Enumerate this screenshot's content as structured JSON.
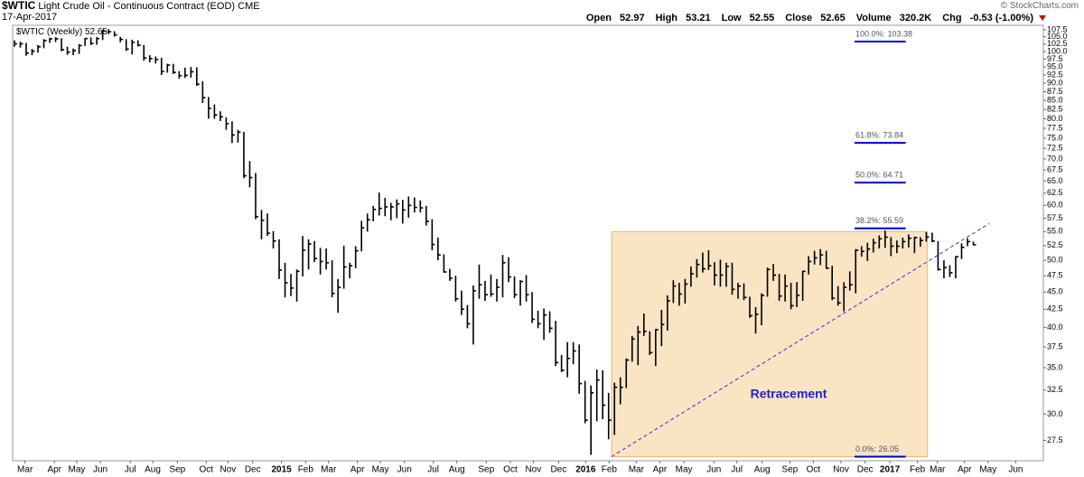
{
  "header": {
    "symbol": "$WTIC",
    "name": "Light Crude Oil - Continuous Contract (EOD)",
    "exchange": "CME",
    "date": "17-Apr-2017",
    "watermark": "© StockCharts.com",
    "quote": [
      {
        "label": "Open",
        "value": 52.97
      },
      {
        "label": "High",
        "value": 53.21
      },
      {
        "label": "Low",
        "value": 52.55
      },
      {
        "label": "Close",
        "value": 52.65
      },
      {
        "label": "Volume",
        "value": "320.2K"
      },
      {
        "label": "Chg",
        "value": "-0.53 (-1.00%)"
      }
    ]
  },
  "chart_data": {
    "type": "ohlc",
    "log_scale": true,
    "legend": {
      "label": "$WTIC (Weekly)",
      "value": 52.65
    },
    "ylim": [
      25.7,
      109.1
    ],
    "xlim": [
      -0.3,
      174.9
    ],
    "yticks": [
      27.5,
      {
        "value": 30,
        "label": "30.0"
      },
      32.5,
      {
        "value": 35,
        "label": "35.0"
      },
      37.5,
      {
        "value": 40,
        "label": "40.0"
      },
      42.5,
      {
        "value": 45,
        "label": "45.0"
      },
      47.5,
      {
        "value": 50,
        "label": "50.0"
      },
      52.5,
      {
        "value": 55,
        "label": "55.0"
      },
      57.5,
      {
        "value": 60,
        "label": "60.0"
      },
      62.5,
      {
        "value": 65,
        "label": "65.0"
      },
      67.5,
      {
        "value": 70,
        "label": "70.0"
      },
      72.5,
      {
        "value": 75,
        "label": "75.0"
      },
      77.5,
      {
        "value": 80,
        "label": "80.0"
      },
      82.5,
      {
        "value": 85,
        "label": "85.0"
      },
      87.5,
      {
        "value": 90,
        "label": "90.0"
      },
      92.5,
      {
        "value": 95,
        "label": "95.0"
      },
      97.5,
      {
        "value": 100,
        "label": "100.0"
      },
      102.5,
      {
        "value": 105,
        "label": "105.0"
      },
      107.5
    ],
    "xticks": [
      {
        "value": 1.8,
        "label": "Mar"
      },
      {
        "value": 6.8,
        "label": "Apr"
      },
      {
        "value": 10.6,
        "label": "May"
      },
      {
        "value": 14.6,
        "label": "Jun"
      },
      {
        "value": 19.7,
        "label": "Jul"
      },
      {
        "value": 23.5,
        "label": "Aug"
      },
      {
        "value": 27.7,
        "label": "Sep"
      },
      {
        "value": 32.6,
        "label": "Oct"
      },
      {
        "value": 36.3,
        "label": "Nov"
      },
      {
        "value": 40.5,
        "label": "Dec"
      },
      {
        "value": 45.4,
        "label": "2015"
      },
      {
        "value": 49.5,
        "label": "Feb"
      },
      {
        "value": 53.4,
        "label": "Mar"
      },
      {
        "value": 58.3,
        "label": "Apr"
      },
      {
        "value": 62.2,
        "label": "May"
      },
      {
        "value": 66.3,
        "label": "Jun"
      },
      {
        "value": 71.2,
        "label": "Jul"
      },
      {
        "value": 75.2,
        "label": "Aug"
      },
      {
        "value": 80.2,
        "label": "Sep"
      },
      {
        "value": 84.3,
        "label": "Oct"
      },
      {
        "value": 88.2,
        "label": "Nov"
      },
      {
        "value": 92.5,
        "label": "Dec"
      },
      {
        "value": 97.1,
        "label": "2016"
      },
      {
        "value": 101.1,
        "label": "Feb"
      },
      {
        "value": 105.7,
        "label": "Mar"
      },
      {
        "value": 109.7,
        "label": "Apr"
      },
      {
        "value": 113.8,
        "label": "May"
      },
      {
        "value": 118.9,
        "label": "Jun"
      },
      {
        "value": 122.8,
        "label": "Jul"
      },
      {
        "value": 127.1,
        "label": "Aug"
      },
      {
        "value": 131.8,
        "label": "Sep"
      },
      {
        "value": 135.8,
        "label": "Oct"
      },
      {
        "value": 140.5,
        "label": "Nov"
      },
      {
        "value": 144.6,
        "label": "Dec"
      },
      {
        "value": 148.8,
        "label": "2017"
      },
      {
        "value": 153.5,
        "label": "Feb"
      },
      {
        "value": 156.9,
        "label": "Mar"
      },
      {
        "value": 161.5,
        "label": "Apr"
      },
      {
        "value": 165.5,
        "label": "May"
      },
      {
        "value": 170.2,
        "label": "Jun"
      }
    ],
    "series": [
      {
        "name": "$WTIC (Weekly)",
        "color": "#000000",
        "bars": [
          [
            103.8,
            101.6,
            102.6
          ],
          [
            103.3,
            101.3,
            102.6
          ],
          [
            102.9,
            98.6,
            99.5
          ],
          [
            100.9,
            98.8,
            100.1
          ],
          [
            102.2,
            99.6,
            101.6
          ],
          [
            104.2,
            101.1,
            103.7
          ],
          [
            104.7,
            102.9,
            104.3
          ],
          [
            104.9,
            103.2,
            104.3
          ],
          [
            104.5,
            100.1,
            100.6
          ],
          [
            101.6,
            98.9,
            99.8
          ],
          [
            101.0,
            98.8,
            100.3
          ],
          [
            102.5,
            99.2,
            102.0
          ],
          [
            104.6,
            101.9,
            104.4
          ],
          [
            104.8,
            102.2,
            102.7
          ],
          [
            104.9,
            102.3,
            104.4
          ],
          [
            107.5,
            103.9,
            107.0
          ],
          [
            107.7,
            105.9,
            106.8
          ],
          [
            107.0,
            105.1,
            105.7
          ],
          [
            105.0,
            103.1,
            104.1
          ],
          [
            104.2,
            100.2,
            100.8
          ],
          [
            104.0,
            99.0,
            103.1
          ],
          [
            103.8,
            101.7,
            102.1
          ],
          [
            102.2,
            97.0,
            97.9
          ],
          [
            98.8,
            96.5,
            97.7
          ],
          [
            98.4,
            96.1,
            97.4
          ],
          [
            97.9,
            92.5,
            93.6
          ],
          [
            96.0,
            93.2,
            95.6
          ],
          [
            96.0,
            92.8,
            93.3
          ],
          [
            93.7,
            91.4,
            92.3
          ],
          [
            94.8,
            91.6,
            92.4
          ],
          [
            95.0,
            91.7,
            93.5
          ],
          [
            94.9,
            89.2,
            89.7
          ],
          [
            90.6,
            84.3,
            85.8
          ],
          [
            86.0,
            80.0,
            82.8
          ],
          [
            83.9,
            80.0,
            81.0
          ],
          [
            82.0,
            79.4,
            80.5
          ],
          [
            80.4,
            77.1,
            78.7
          ],
          [
            79.3,
            73.8,
            75.8
          ],
          [
            77.1,
            73.9,
            76.5
          ],
          [
            76.6,
            65.7,
            66.2
          ],
          [
            69.5,
            63.7,
            65.8
          ],
          [
            66.8,
            57.3,
            57.8
          ],
          [
            59.1,
            53.6,
            57.1
          ],
          [
            58.4,
            54.2,
            54.7
          ],
          [
            55.1,
            52.0,
            53.3
          ],
          [
            53.6,
            47.0,
            48.4
          ],
          [
            49.6,
            44.2,
            46.4
          ],
          [
            47.8,
            44.4,
            45.6
          ],
          [
            48.5,
            43.6,
            48.2
          ],
          [
            54.2,
            47.4,
            51.7
          ],
          [
            53.6,
            48.5,
            52.8
          ],
          [
            53.3,
            49.7,
            50.3
          ],
          [
            52.1,
            47.7,
            49.8
          ],
          [
            52.0,
            48.5,
            49.6
          ],
          [
            50.0,
            44.2,
            44.8
          ],
          [
            47.0,
            42.0,
            45.7
          ],
          [
            52.5,
            45.5,
            48.9
          ],
          [
            49.6,
            47.1,
            49.1
          ],
          [
            52.4,
            48.7,
            51.6
          ],
          [
            57.0,
            51.5,
            55.7
          ],
          [
            58.4,
            55.0,
            57.2
          ],
          [
            59.9,
            56.9,
            59.2
          ],
          [
            62.6,
            58.0,
            59.4
          ],
          [
            61.5,
            57.9,
            59.7
          ],
          [
            60.5,
            57.1,
            59.7
          ],
          [
            61.2,
            57.5,
            60.3
          ],
          [
            61.1,
            56.5,
            59.1
          ],
          [
            61.8,
            57.6,
            60.0
          ],
          [
            61.6,
            58.6,
            59.6
          ],
          [
            61.0,
            58.6,
            59.5
          ],
          [
            59.9,
            56.1,
            56.9
          ],
          [
            57.3,
            51.7,
            52.7
          ],
          [
            53.9,
            50.0,
            50.9
          ],
          [
            51.0,
            48.0,
            48.1
          ],
          [
            48.6,
            46.7,
            47.1
          ],
          [
            47.5,
            43.6,
            44.0
          ],
          [
            45.2,
            41.7,
            42.5
          ],
          [
            43.1,
            39.9,
            40.5
          ],
          [
            46.0,
            37.8,
            45.2
          ],
          [
            49.3,
            44.0,
            46.1
          ],
          [
            46.7,
            43.7,
            44.6
          ],
          [
            47.7,
            44.3,
            44.7
          ],
          [
            47.0,
            43.6,
            45.7
          ],
          [
            50.9,
            44.2,
            49.6
          ],
          [
            50.5,
            46.5,
            47.3
          ],
          [
            47.4,
            44.1,
            44.6
          ],
          [
            46.8,
            43.0,
            46.6
          ],
          [
            47.6,
            43.6,
            44.6
          ],
          [
            45.0,
            40.6,
            41.1
          ],
          [
            42.3,
            39.9,
            40.5
          ],
          [
            42.6,
            38.4,
            41.7
          ],
          [
            42.2,
            39.3,
            39.9
          ],
          [
            40.9,
            35.2,
            35.6
          ],
          [
            36.5,
            34.5,
            34.7
          ],
          [
            38.1,
            33.9,
            36.1
          ],
          [
            38.1,
            35.4,
            37.0
          ],
          [
            37.8,
            32.1,
            33.2
          ],
          [
            33.5,
            29.1,
            29.4
          ],
          [
            33.0,
            26.2,
            32.2
          ],
          [
            34.8,
            29.3,
            33.6
          ],
          [
            34.7,
            29.5,
            30.9
          ],
          [
            32.2,
            27.6,
            29.4
          ],
          [
            33.3,
            28.0,
            32.8
          ],
          [
            33.9,
            31.0,
            32.8
          ],
          [
            36.1,
            32.7,
            35.9
          ],
          [
            38.9,
            35.7,
            38.5
          ],
          [
            40.2,
            35.3,
            39.4
          ],
          [
            41.9,
            38.9,
            39.5
          ],
          [
            39.5,
            36.5,
            36.8
          ],
          [
            39.8,
            35.2,
            39.7
          ],
          [
            42.4,
            37.6,
            40.4
          ],
          [
            44.5,
            39.6,
            43.7
          ],
          [
            46.8,
            43.4,
            45.9
          ],
          [
            46.4,
            43.0,
            44.7
          ],
          [
            47.0,
            43.3,
            46.2
          ],
          [
            49.0,
            45.8,
            47.8
          ],
          [
            50.2,
            47.2,
            49.3
          ],
          [
            51.3,
            48.0,
            48.6
          ],
          [
            51.7,
            48.4,
            49.1
          ],
          [
            49.7,
            46.0,
            47.6
          ],
          [
            50.1,
            45.8,
            47.6
          ],
          [
            49.6,
            45.8,
            48.99
          ],
          [
            49.6,
            44.6,
            45.4
          ],
          [
            46.4,
            44.0,
            45.9
          ],
          [
            46.3,
            43.8,
            44.2
          ],
          [
            44.3,
            41.3,
            41.6
          ],
          [
            42.8,
            39.2,
            41.8
          ],
          [
            44.8,
            40.3,
            44.5
          ],
          [
            48.8,
            44.3,
            48.5
          ],
          [
            49.4,
            46.7,
            47.6
          ],
          [
            47.8,
            43.7,
            44.4
          ],
          [
            47.7,
            43.6,
            45.9
          ],
          [
            46.4,
            42.5,
            43.0
          ],
          [
            46.5,
            42.8,
            44.5
          ],
          [
            48.3,
            43.7,
            48.2
          ],
          [
            50.7,
            47.7,
            49.8
          ],
          [
            51.6,
            49.3,
            50.4
          ],
          [
            51.9,
            49.2,
            50.9
          ],
          [
            51.6,
            48.6,
            48.7
          ],
          [
            49.1,
            43.8,
            44.1
          ],
          [
            45.9,
            43.0,
            43.4
          ],
          [
            46.5,
            42.2,
            45.7
          ],
          [
            48.2,
            45.2,
            46.1
          ],
          [
            51.9,
            44.8,
            51.7
          ],
          [
            52.4,
            50.6,
            51.5
          ],
          [
            53.0,
            49.9,
            51.9
          ],
          [
            53.7,
            51.3,
            53.0
          ],
          [
            54.3,
            52.0,
            53.7
          ],
          [
            55.2,
            52.1,
            53.99
          ],
          [
            54.0,
            50.7,
            52.4
          ],
          [
            53.4,
            51.2,
            52.4
          ],
          [
            53.9,
            52.0,
            53.2
          ],
          [
            54.5,
            52.2,
            53.8
          ],
          [
            54.1,
            51.2,
            53.9
          ],
          [
            54.0,
            52.3,
            53.4
          ],
          [
            54.9,
            53.2,
            54.0
          ],
          [
            54.8,
            53.1,
            53.3
          ],
          [
            53.3,
            48.3,
            48.5
          ],
          [
            50.0,
            47.1,
            48.8
          ],
          [
            49.2,
            47.3,
            47.97
          ],
          [
            50.7,
            47.1,
            50.6
          ],
          [
            52.9,
            50.2,
            52.2
          ],
          [
            53.8,
            52.4,
            53.2
          ],
          [
            53.21,
            52.55,
            52.65
          ]
        ]
      }
    ],
    "fib_levels": [
      {
        "value": 103.38,
        "label": "100.0%: 103.38"
      },
      {
        "value": 73.84,
        "label": "61.8%: 73.84"
      },
      {
        "value": 64.71,
        "label": "50.0%: 64.71"
      },
      {
        "value": 55.59,
        "label": "38.2%: 55.59"
      },
      {
        "value": 26.05,
        "label": "0.0%: 26.05"
      }
    ],
    "fib_xlim": [
      142.8,
      151.5
    ],
    "retracement_box": {
      "label": "Retracement",
      "xlim": [
        101.5,
        155.2
      ],
      "ylim": [
        26.05,
        55.0
      ],
      "color": "#f9e4c4"
    },
    "trendline": {
      "x": [
        101.5,
        165.7
      ],
      "y": [
        26.05,
        56.5
      ],
      "color": "#3333cc"
    }
  }
}
